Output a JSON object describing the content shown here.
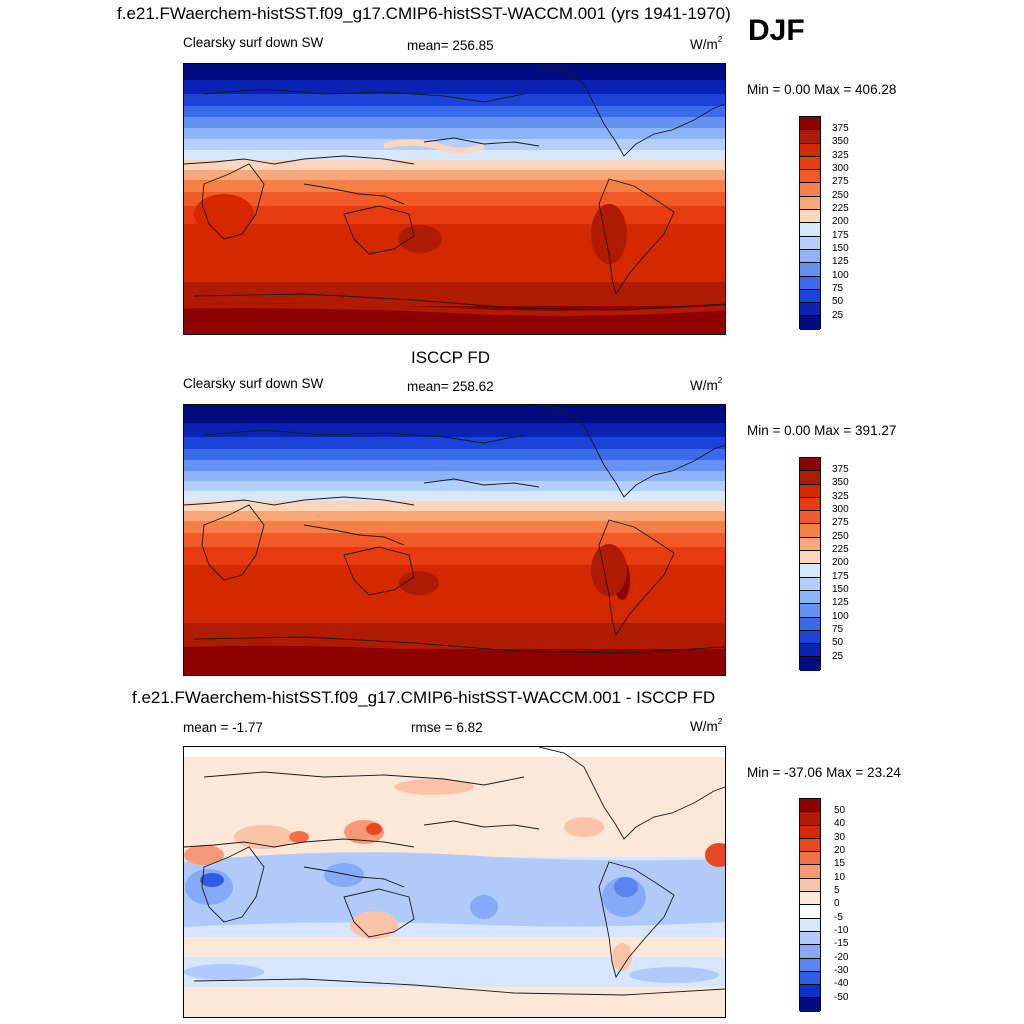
{
  "season": "DJF",
  "panels": [
    {
      "title": "f.e21.FWaerchem-histSST.f09_g17.CMIP6-histSST-WACCM.001 (yrs 1941-1970)",
      "left_label": "Clearsky surf down SW",
      "center_label": "mean= 256.85",
      "units": "W/m",
      "units_sup": "2",
      "minmax": "Min =   0.00 Max = 406.28",
      "colorbar": {
        "labels": [
          "375",
          "350",
          "325",
          "300",
          "275",
          "250",
          "225",
          "200",
          "175",
          "150",
          "125",
          "100",
          "75",
          "50",
          "25"
        ],
        "colors": [
          "#8c0000",
          "#b01a00",
          "#d32800",
          "#e83c10",
          "#f25a28",
          "#f68048",
          "#f9a878",
          "#fcd6bc",
          "#d8e8fc",
          "#b4d0fa",
          "#8eb4f7",
          "#6392f2",
          "#3b6bec",
          "#1a44d9",
          "#0a22b4",
          "#000c80"
        ]
      }
    },
    {
      "title": "ISCCP FD",
      "left_label": "Clearsky surf down SW",
      "center_label": "mean= 258.62",
      "units": "W/m",
      "units_sup": "2",
      "minmax": "Min =   0.00 Max = 391.27",
      "colorbar": {
        "labels": [
          "375",
          "350",
          "325",
          "300",
          "275",
          "250",
          "225",
          "200",
          "175",
          "150",
          "125",
          "100",
          "75",
          "50",
          "25"
        ],
        "colors": [
          "#8c0000",
          "#b01a00",
          "#d32800",
          "#e83c10",
          "#f25a28",
          "#f68048",
          "#f9a878",
          "#fcd6bc",
          "#d8e8fc",
          "#b4d0fa",
          "#8eb4f7",
          "#6392f2",
          "#3b6bec",
          "#1a44d9",
          "#0a22b4",
          "#000c80"
        ]
      }
    },
    {
      "title": "f.e21.FWaerchem-histSST.f09_g17.CMIP6-histSST-WACCM.001 - ISCCP FD",
      "left_label": "mean =  -1.77",
      "center_label": "rmse =   6.82",
      "units": "W/m",
      "units_sup": "2",
      "minmax": "Min = -37.06 Max =  23.24",
      "colorbar": {
        "labels": [
          "50",
          "40",
          "30",
          "20",
          "15",
          "10",
          "5",
          "0",
          "-5",
          "-10",
          "-15",
          "-20",
          "-30",
          "-40",
          "-50"
        ],
        "colors": [
          "#8c0000",
          "#b01a00",
          "#d32800",
          "#e84820",
          "#f27048",
          "#f79878",
          "#fbc4a8",
          "#fde8d8",
          "#ffffff",
          "#d6e6fc",
          "#b0cbfa",
          "#86aaf5",
          "#5a84ef",
          "#2f5ce6",
          "#0f30c8",
          "#000c80"
        ]
      }
    }
  ]
}
